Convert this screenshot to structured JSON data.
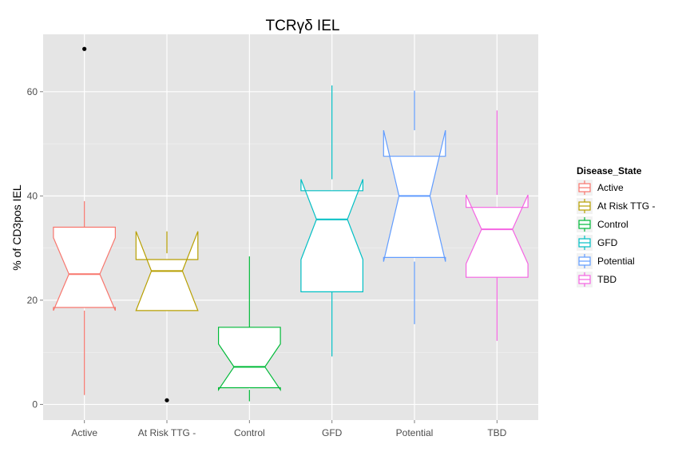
{
  "chart_data": {
    "type": "boxplot",
    "notched": true,
    "title": "TCRγδ IEL",
    "xlabel": "",
    "ylabel": "% of CD3pos IEL",
    "ylim": [
      -3,
      71
    ],
    "yticks": [
      0,
      20,
      40,
      60
    ],
    "grid": true,
    "legend": {
      "title": "Disease_State",
      "position": "right"
    },
    "categories": [
      "Active",
      "At Risk TTG -",
      "Control",
      "GFD",
      "Potential",
      "TBD"
    ],
    "colors": [
      "#F8766D",
      "#B79F00",
      "#00BA38",
      "#00BFC4",
      "#619CFF",
      "#F564E3"
    ],
    "boxes": [
      {
        "category": "Active",
        "whisker_low": 1.8,
        "q1": 18.6,
        "median": 25.0,
        "q3": 34.0,
        "whisker_high": 39.0,
        "notch_low": 18.0,
        "notch_high": 32.0,
        "outliers": [
          68.2
        ]
      },
      {
        "category": "At Risk TTG -",
        "whisker_low": 18.0,
        "q1": 18.0,
        "median": 25.6,
        "q3": 27.8,
        "whisker_high": 29.0,
        "notch_low": 18.0,
        "notch_high": 33.2,
        "outliers": [
          0.8
        ]
      },
      {
        "category": "Control",
        "whisker_low": 0.6,
        "q1": 3.2,
        "median": 7.2,
        "q3": 14.8,
        "whisker_high": 28.4,
        "notch_low": 2.8,
        "notch_high": 11.6,
        "outliers": []
      },
      {
        "category": "GFD",
        "whisker_low": 9.2,
        "q1": 21.6,
        "median": 35.5,
        "q3": 41.0,
        "whisker_high": 61.2,
        "notch_low": 27.8,
        "notch_high": 43.2,
        "outliers": []
      },
      {
        "category": "Potential",
        "whisker_low": 15.4,
        "q1": 28.2,
        "median": 40.0,
        "q3": 47.6,
        "whisker_high": 60.2,
        "notch_low": 27.4,
        "notch_high": 52.6,
        "outliers": []
      },
      {
        "category": "TBD",
        "whisker_low": 12.2,
        "q1": 24.4,
        "median": 33.6,
        "q3": 37.8,
        "whisker_high": 56.4,
        "notch_low": 27.0,
        "notch_high": 40.2,
        "outliers": []
      }
    ]
  }
}
